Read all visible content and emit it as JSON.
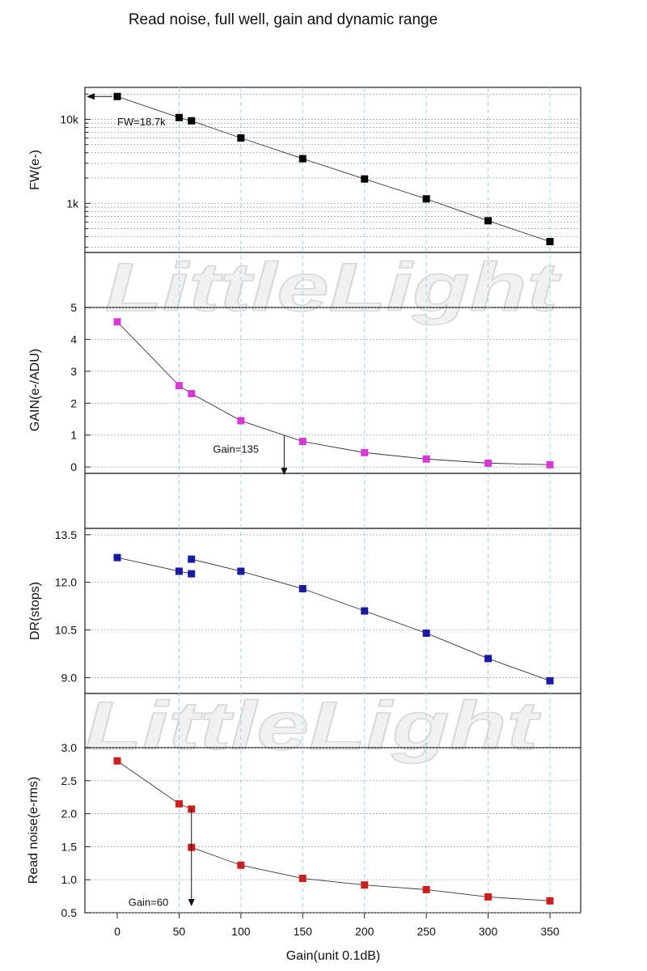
{
  "page": {
    "title": "Read noise, full well, gain and dynamic range",
    "watermark": "LittleLight",
    "x_axis_label": "Gain(unit 0.1dB)",
    "x_ticks": [
      0,
      50,
      100,
      150,
      200,
      250,
      300,
      350
    ]
  },
  "chart_data": [
    {
      "type": "scatter",
      "scale": "log",
      "ylabel": "FW(e-)",
      "ylim": [
        260,
        24000
      ],
      "y_tick_labels": [
        {
          "value": 1000,
          "label": "1k"
        },
        {
          "value": 10000,
          "label": "10k"
        }
      ],
      "grid": "dotted",
      "marker_color": "#000000",
      "x": [
        0,
        50,
        60,
        100,
        150,
        200,
        250,
        300,
        350
      ],
      "y": [
        18700,
        10500,
        9600,
        6000,
        3400,
        1950,
        1130,
        620,
        350
      ],
      "annotation": {
        "text": "FW=18.7k",
        "arrow": "pointing left to y-axis at 18.7k"
      }
    },
    {
      "type": "scatter",
      "ylabel": "GAIN(e-/ADU)",
      "ylim": [
        -0.2,
        5
      ],
      "y_ticks": [
        0,
        1,
        2,
        3,
        4,
        5
      ],
      "grid": "dotted",
      "marker_color": "#d63ad6",
      "x": [
        0,
        50,
        60,
        100,
        150,
        200,
        250,
        300,
        350
      ],
      "y": [
        4.55,
        2.55,
        2.3,
        1.45,
        0.8,
        0.45,
        0.25,
        0.12,
        0.07
      ],
      "annotation": {
        "text": "Gain=135",
        "arrow_x": 135,
        "arrow_from": 1.0,
        "arrow_to": 0
      }
    },
    {
      "type": "scatter",
      "ylabel": "DR(stops)",
      "ylim": [
        8.5,
        13.7
      ],
      "y_ticks": [
        9.0,
        10.5,
        12.0,
        13.5
      ],
      "grid": "dotted",
      "marker_color": "#1a1aa0",
      "x": [
        0,
        50,
        60,
        60,
        100,
        150,
        200,
        250,
        300,
        350
      ],
      "y": [
        12.78,
        12.35,
        12.27,
        12.73,
        12.35,
        11.8,
        11.1,
        10.4,
        9.6,
        8.9
      ],
      "segments": [
        [
          0,
          2
        ],
        [
          3,
          9
        ]
      ]
    },
    {
      "type": "scatter",
      "ylabel": "Read noise(e-rms)",
      "ylim": [
        0.5,
        3.0
      ],
      "y_ticks": [
        0.5,
        1.0,
        1.5,
        2.0,
        2.5,
        3.0
      ],
      "grid": "dotted",
      "marker_color": "#c82020",
      "x": [
        0,
        50,
        60,
        60,
        100,
        150,
        200,
        250,
        300,
        350
      ],
      "y": [
        2.8,
        2.15,
        2.07,
        1.49,
        1.22,
        1.02,
        0.92,
        0.85,
        0.74,
        0.68
      ],
      "segments": [
        [
          0,
          2
        ],
        [
          3,
          9
        ]
      ],
      "annotation": {
        "text": "Gain=60",
        "arrow_x": 60,
        "arrow_from": 2.07,
        "arrow_to": 0.5
      }
    }
  ]
}
